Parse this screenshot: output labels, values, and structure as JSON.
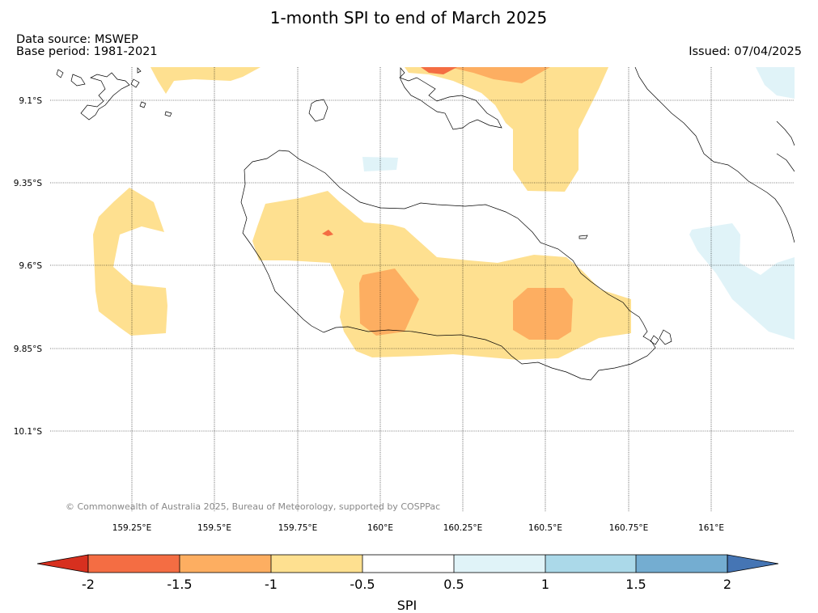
{
  "header": {
    "title": "1-month SPI to end of March 2025",
    "data_source": "Data source: MSWEP",
    "base_period": "Base period: 1981-2021",
    "issued": "Issued: 07/04/2025"
  },
  "map": {
    "lat_ticks": [
      "9.1°S",
      "9.35°S",
      "9.6°S",
      "9.85°S",
      "10.1°S"
    ],
    "lon_ticks": [
      "159.25°E",
      "159.5°E",
      "159.75°E",
      "160°E",
      "160.25°E",
      "160.5°E",
      "160.75°E",
      "161°E"
    ],
    "credit": "© Commonwealth of Australia 2025, Bureau of Meteorology, supported by COSPPac"
  },
  "legend": {
    "title": "SPI",
    "tick_labels": [
      "-2",
      "-1.5",
      "-1",
      "-0.5",
      "0.5",
      "1",
      "1.5",
      "2"
    ],
    "colors": [
      "#d7301f",
      "#f46d43",
      "#fdae61",
      "#fee090",
      "#ffffff",
      "#e0f3f8",
      "#abd9e9",
      "#74add1",
      "#4575b4"
    ]
  }
}
